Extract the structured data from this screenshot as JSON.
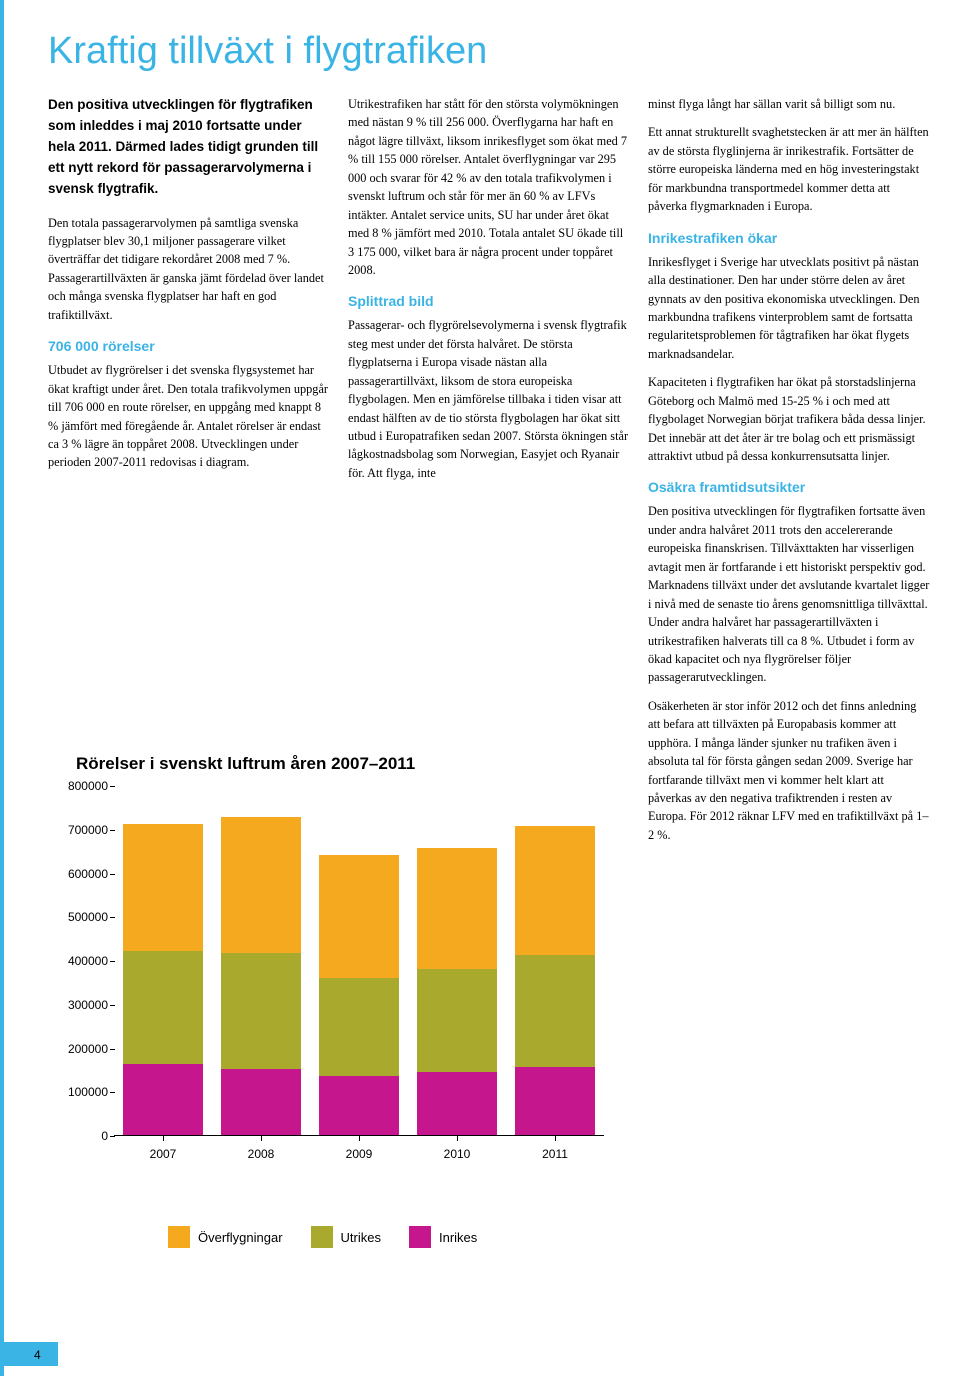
{
  "colors": {
    "accent": "#3ab3e5",
    "text": "#000000",
    "heading_blue": "#3ab3e5"
  },
  "title": "Kraftig tillväxt i flygtrafiken",
  "intro": "Den positiva utvecklingen för flygtrafiken som inleddes i maj 2010 fortsatte under hela 2011. Därmed lades tidigt grunden till ett nytt rekord för passagerarvolymerna i svensk flygtrafik.",
  "col1": {
    "p1": "Den totala passagerarvolymen på samtliga svenska flygplatser blev 30,1 miljoner passagerare vilket överträffar det tidigare rekordåret 2008 med 7 %. Passagerartillväxten är ganska jämt fördelad över landet och många svenska flygplatser har haft en god trafiktillväxt.",
    "h1": "706 000 rörelser",
    "p2": "Utbudet av flygrörelser i det svenska flygsystemet har ökat kraftigt under året. Den totala trafikvolymen uppgår till 706 000 en route rörelser, en uppgång med knappt 8 % jämfört med föregående år. Antalet rörelser är endast ca 3 % lägre än toppåret 2008. Utvecklingen under perioden 2007-2011 redovisas i diagram."
  },
  "col2": {
    "p1": "Utrikestrafiken har stått för den största volymökningen med nästan 9 % till 256 000. Överflygarna har haft en något lägre tillväxt, liksom inrikesflyget som ökat med 7 % till 155 000 rörelser. Antalet överflygningar var 295 000 och svarar för 42 % av den totala trafikvolymen i svenskt luftrum och står för mer än 60 % av LFVs intäkter. Antalet service units, SU har under året ökat med 8 % jämfört med 2010. Totala antalet SU ökade till 3 175 000, vilket bara är några procent under toppåret 2008.",
    "h1": "Splittrad bild",
    "p2": "Passagerar- och flygrörelsevolymerna i svensk flygtrafik steg mest under det första halvåret. De största flygplatserna i Europa visade nästan alla passagerartillväxt, liksom de stora europeiska flygbolagen. Men en jämförelse tillbaka i tiden visar att endast hälften av de tio största flygbolagen har ökat sitt utbud i Europatrafiken sedan 2007. Största ökningen står lågkostnadsbolag som Norwegian, Easyjet och Ryanair för. Att flyga, inte"
  },
  "col3": {
    "p1": "minst flyga långt har sällan varit så billigt som nu.",
    "p2": "Ett annat strukturellt svaghetstecken är att mer än hälften av de största flyglinjerna är inrikestrafik. Fortsätter de större europeiska länderna med en hög investeringstakt för markbundna transportmedel kommer detta att påverka flygmarknaden i Europa.",
    "h1": "Inrikestrafiken ökar",
    "p3": "Inrikesflyget i Sverige har utvecklats positivt på nästan alla destinationer. Den har under större delen av året gynnats av den positiva ekonomiska utvecklingen. Den markbundna trafikens vinterproblem samt de fortsatta regularitetsproblemen för tågtrafiken har ökat flygets marknadsandelar.",
    "p4": "Kapaciteten i flygtrafiken har ökat på storstadslinjerna Göteborg och Malmö med 15-25 % i och med att flygbolaget Norwegian börjat trafikera båda dessa linjer. Det innebär att det åter är tre bolag och ett prismässigt attraktivt utbud på dessa konkurrensutsatta linjer.",
    "h2": "Osäkra framtidsutsikter",
    "p5": "Den positiva utvecklingen för flygtrafiken fortsatte även under andra halvåret 2011 trots den accelererande europeiska finanskrisen. Tillväxttakten har visserligen avtagit men är fortfarande i ett historiskt perspektiv god. Marknadens tillväxt under det avslutande kvartalet ligger i nivå med de senaste tio årens genomsnittliga tillväxttal. Under andra halvåret har passagerartillväxten i utrikestrafiken halverats till ca 8 %. Utbudet i form av ökad kapacitet och nya flygrörelser följer passagerarutvecklingen.",
    "p6": "Osäkerheten är stor inför 2012 och det finns anledning att befara att tillväxten på Europabasis kommer att upphöra. I många länder sjunker nu trafiken även i absoluta tal för första gången sedan 2009. Sverige har fortfarande tillväxt men vi kommer helt klart att påverkas av den negativa trafiktrenden i resten av Europa. För 2012 räknar LFV med en trafiktillväxt på 1–2 %."
  },
  "chart": {
    "title": "Rörelser i svenskt luftrum åren 2007–2011",
    "type": "stacked_bar",
    "ylim": [
      0,
      800000
    ],
    "ytick_step": 100000,
    "yticks": [
      "0",
      "100000",
      "200000",
      "300000",
      "400000",
      "500000",
      "600000",
      "700000",
      "800000"
    ],
    "categories": [
      "2007",
      "2008",
      "2009",
      "2010",
      "2011"
    ],
    "series": [
      {
        "name": "Inrikes",
        "color": "#c6168d",
        "values": [
          162000,
          152000,
          135000,
          145000,
          155000
        ]
      },
      {
        "name": "Utrikes",
        "color": "#a9a92e",
        "values": [
          258000,
          263000,
          225000,
          235000,
          256000
        ]
      },
      {
        "name": "Överflygningar",
        "color": "#f5a91e",
        "values": [
          290000,
          312000,
          280000,
          275000,
          295000
        ]
      }
    ],
    "legend": [
      "Överflygningar",
      "Utrikes",
      "Inrikes"
    ]
  },
  "page_number": "4"
}
